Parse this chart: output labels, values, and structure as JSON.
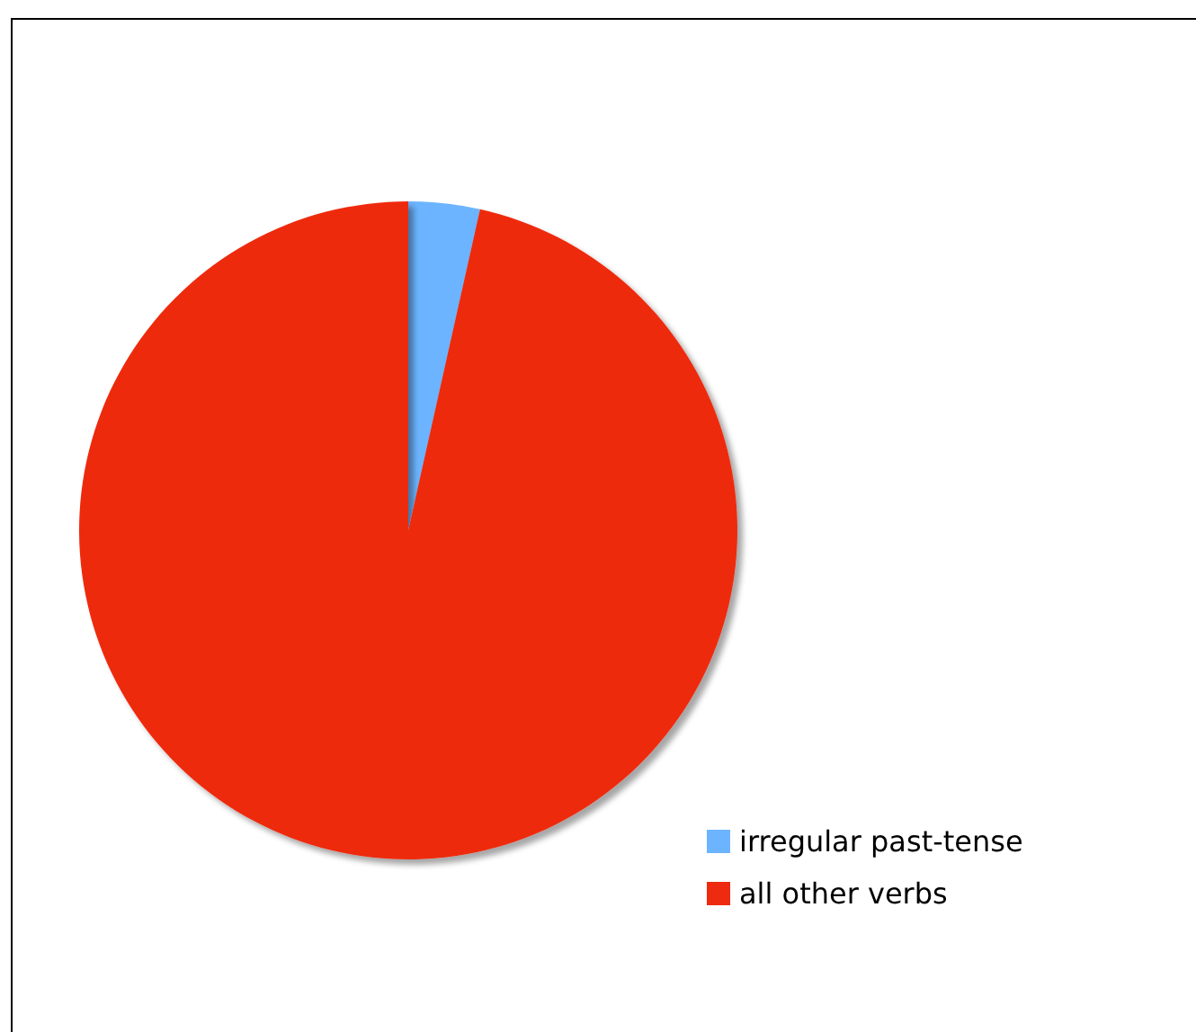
{
  "chart_data": {
    "type": "pie",
    "categories": [
      "irregular past-tense",
      "all other verbs"
    ],
    "values": [
      3.5,
      96.5
    ],
    "colors": [
      "#6cb4ff",
      "#ee2a10"
    ],
    "legend": "bottom right"
  }
}
